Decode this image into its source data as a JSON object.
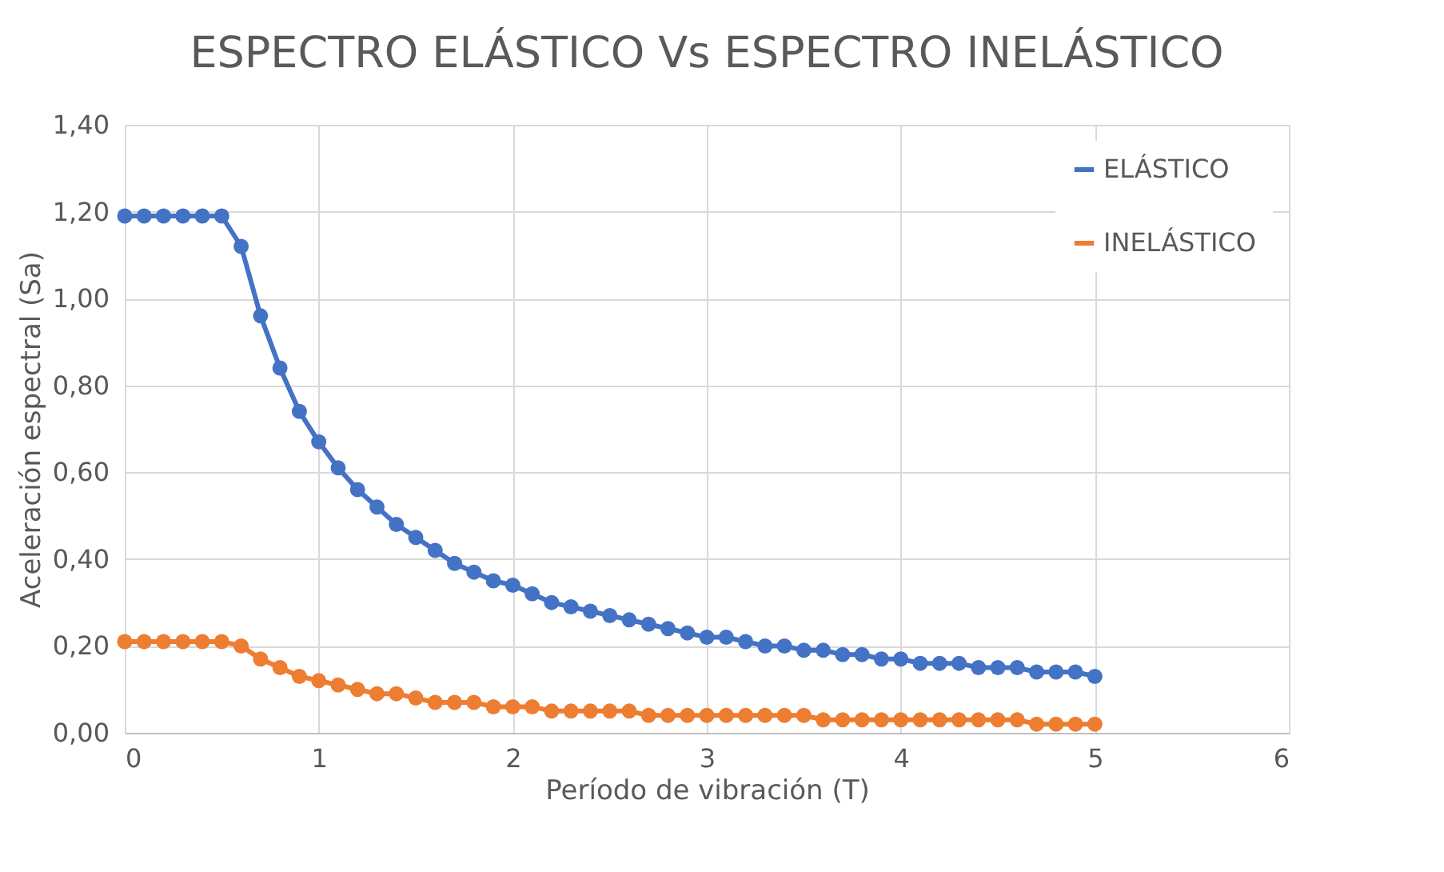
{
  "chart_data": {
    "type": "line",
    "title": "ESPECTRO ELÁSTICO Vs  ESPECTRO INELÁSTICO",
    "xlabel": "Período de vibración (T)",
    "ylabel": "Aceleración espectral (Sa)",
    "x": [
      0,
      0.1,
      0.2,
      0.3,
      0.4,
      0.5,
      0.6,
      0.7,
      0.8,
      0.9,
      1.0,
      1.1,
      1.2,
      1.3,
      1.4,
      1.5,
      1.6,
      1.7,
      1.8,
      1.9,
      2.0,
      2.1,
      2.2,
      2.3,
      2.4,
      2.5,
      2.6,
      2.7,
      2.8,
      2.9,
      3.0,
      3.1,
      3.2,
      3.3,
      3.4,
      3.5,
      3.6,
      3.7,
      3.8,
      3.9,
      4.0,
      4.1,
      4.2,
      4.3,
      4.4,
      4.5,
      4.6,
      4.7,
      4.8,
      4.9,
      5.0
    ],
    "series": [
      {
        "name": "ELÁSTICO",
        "color": "#4472c4",
        "values": [
          1.19,
          1.19,
          1.19,
          1.19,
          1.19,
          1.19,
          1.12,
          0.96,
          0.84,
          0.74,
          0.67,
          0.61,
          0.56,
          0.52,
          0.48,
          0.45,
          0.42,
          0.39,
          0.37,
          0.35,
          0.34,
          0.32,
          0.3,
          0.29,
          0.28,
          0.27,
          0.26,
          0.25,
          0.24,
          0.23,
          0.22,
          0.22,
          0.21,
          0.2,
          0.2,
          0.19,
          0.19,
          0.18,
          0.18,
          0.17,
          0.17,
          0.16,
          0.16,
          0.16,
          0.15,
          0.15,
          0.15,
          0.14,
          0.14,
          0.14,
          0.13
        ]
      },
      {
        "name": "INELÁSTICO",
        "color": "#ed7d31",
        "values": [
          0.21,
          0.21,
          0.21,
          0.21,
          0.21,
          0.21,
          0.2,
          0.17,
          0.15,
          0.13,
          0.12,
          0.11,
          0.1,
          0.09,
          0.09,
          0.08,
          0.07,
          0.07,
          0.07,
          0.06,
          0.06,
          0.06,
          0.05,
          0.05,
          0.05,
          0.05,
          0.05,
          0.04,
          0.04,
          0.04,
          0.04,
          0.04,
          0.04,
          0.04,
          0.04,
          0.04,
          0.03,
          0.03,
          0.03,
          0.03,
          0.03,
          0.03,
          0.03,
          0.03,
          0.03,
          0.03,
          0.03,
          0.02,
          0.02,
          0.02,
          0.02
        ]
      }
    ],
    "xlim": [
      0,
      6
    ],
    "xticks": [
      0,
      1,
      2,
      3,
      4,
      5,
      6
    ],
    "ylim": [
      0,
      1.4
    ],
    "yticks": [
      {
        "value": 0,
        "label": "0,00"
      },
      {
        "value": 0.2,
        "label": "0,20"
      },
      {
        "value": 0.4,
        "label": "0,40"
      },
      {
        "value": 0.6,
        "label": "0,60"
      },
      {
        "value": 0.8,
        "label": "0,80"
      },
      {
        "value": 1.0,
        "label": "1,00"
      },
      {
        "value": 1.2,
        "label": "1,20"
      },
      {
        "value": 1.4,
        "label": "1,40"
      }
    ],
    "grid": true,
    "legend": "top right",
    "marker": "circle",
    "line_style": "solid"
  }
}
